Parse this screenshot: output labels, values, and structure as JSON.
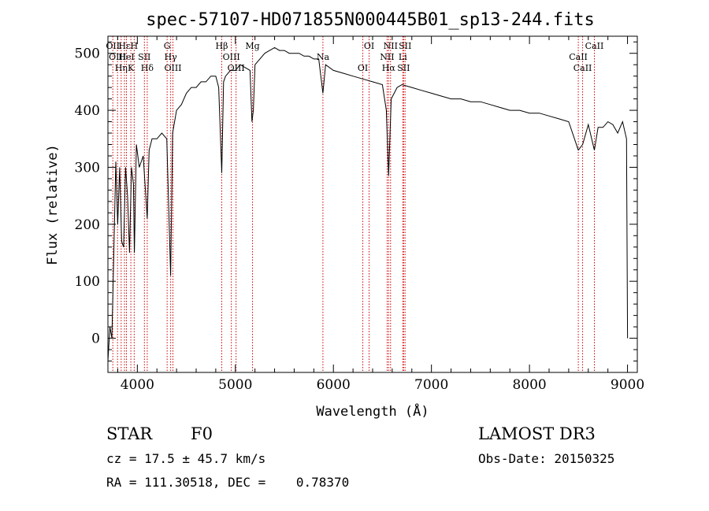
{
  "chart_data": {
    "type": "line",
    "title": "spec-57107-HD071855N000445B01_sp13-244.fits",
    "xlabel": "Wavelength (Å)",
    "ylabel": "Flux (relative)",
    "xlim": [
      3700,
      9100
    ],
    "ylim": [
      -60,
      530
    ],
    "xticks": [
      4000,
      5000,
      6000,
      7000,
      8000,
      9000
    ],
    "yticks": [
      0,
      100,
      200,
      300,
      400,
      500
    ],
    "grid": false,
    "series": [
      {
        "x": [
          3700,
          3720,
          3740,
          3760,
          3780,
          3800,
          3820,
          3840,
          3860,
          3880,
          3900,
          3920,
          3940,
          3960,
          3970,
          3990,
          4020,
          4060,
          4101,
          4120,
          4150,
          4200,
          4250,
          4300,
          4340,
          4360,
          4400,
          4450,
          4500,
          4550,
          4600,
          4650,
          4700,
          4750,
          4800,
          4830,
          4861,
          4880,
          4900,
          4950,
          5000,
          5050,
          5100,
          5150,
          5169,
          5183,
          5200,
          5250,
          5300,
          5350,
          5400,
          5450,
          5500,
          5550,
          5600,
          5650,
          5700,
          5750,
          5800,
          5850,
          5893,
          5920,
          6000,
          6100,
          6200,
          6300,
          6400,
          6500,
          6540,
          6563,
          6590,
          6650,
          6700,
          6800,
          6900,
          7000,
          7100,
          7200,
          7300,
          7400,
          7500,
          7600,
          7700,
          7800,
          7900,
          8000,
          8100,
          8200,
          8300,
          8400,
          8498,
          8542,
          8600,
          8662,
          8700,
          8750,
          8800,
          8850,
          8900,
          8950,
          8990,
          9000
        ],
        "y": [
          -40,
          20,
          0,
          150,
          310,
          200,
          300,
          170,
          160,
          300,
          250,
          150,
          300,
          270,
          150,
          340,
          300,
          320,
          210,
          330,
          350,
          350,
          360,
          350,
          110,
          360,
          400,
          410,
          430,
          440,
          440,
          450,
          450,
          460,
          460,
          440,
          290,
          450,
          460,
          470,
          470,
          480,
          475,
          470,
          380,
          400,
          480,
          490,
          500,
          505,
          510,
          505,
          505,
          500,
          500,
          500,
          495,
          495,
          490,
          490,
          430,
          480,
          470,
          465,
          460,
          455,
          450,
          445,
          400,
          285,
          420,
          440,
          445,
          440,
          435,
          430,
          425,
          420,
          420,
          415,
          415,
          410,
          405,
          400,
          400,
          395,
          395,
          390,
          385,
          380,
          330,
          340,
          375,
          330,
          370,
          370,
          380,
          375,
          360,
          380,
          350,
          0
        ]
      }
    ],
    "line_markers": [
      {
        "wl": 3750,
        "label": "OII"
      },
      {
        "wl": 3798,
        "label": "OIII"
      },
      {
        "wl": 3835,
        "label": "Hη"
      },
      {
        "wl": 3869,
        "label": "Hε"
      },
      {
        "wl": 3889,
        "label": "HeI"
      },
      {
        "wl": 3934,
        "label": "K"
      },
      {
        "wl": 3968,
        "label": "H"
      },
      {
        "wl": 4072,
        "label": "SII"
      },
      {
        "wl": 4101,
        "label": "Hδ"
      },
      {
        "wl": 4304,
        "label": "G"
      },
      {
        "wl": 4340,
        "label": "Hγ"
      },
      {
        "wl": 4363,
        "label": "OIII"
      },
      {
        "wl": 4861,
        "label": "Hβ"
      },
      {
        "wl": 4959,
        "label": "OIII"
      },
      {
        "wl": 5007,
        "label": "OIII"
      },
      {
        "wl": 5175,
        "label": "Mg"
      },
      {
        "wl": 5893,
        "label": "Na"
      },
      {
        "wl": 6300,
        "label": "OI"
      },
      {
        "wl": 6364,
        "label": "OI"
      },
      {
        "wl": 6548,
        "label": "NII"
      },
      {
        "wl": 6563,
        "label": "Hα"
      },
      {
        "wl": 6583,
        "label": "NII"
      },
      {
        "wl": 6708,
        "label": "Li"
      },
      {
        "wl": 6716,
        "label": "SII"
      },
      {
        "wl": 6731,
        "label": "SII"
      },
      {
        "wl": 8498,
        "label": "CaII"
      },
      {
        "wl": 8542,
        "label": "CaII"
      },
      {
        "wl": 8662,
        "label": "CaII"
      }
    ]
  },
  "info": {
    "object_class": "STAR",
    "subclass": "F0",
    "survey": "LAMOST DR3",
    "cz": "cz = 17.5 ± 45.7 km/s",
    "obs_date": "Obs-Date: 20150325",
    "coords": "RA = 111.30518, DEC =    0.78370"
  },
  "colors": {
    "spectrum": "#000000",
    "marker": "#cc0000"
  }
}
